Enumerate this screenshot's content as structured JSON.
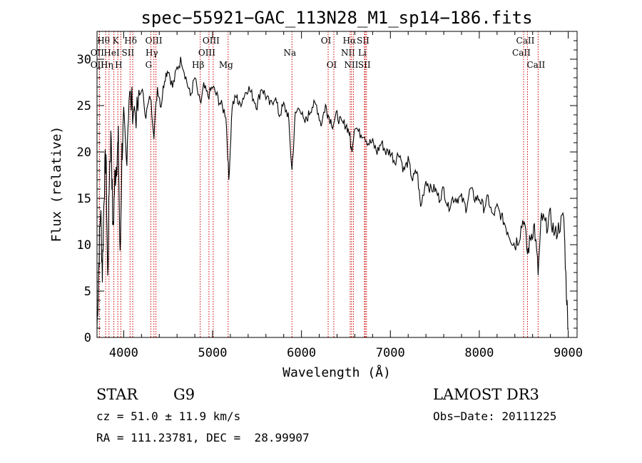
{
  "chart_data": {
    "type": "line",
    "title": "spec−55921−GAC_113N28_M1_sp14−186.fits",
    "xlabel": "Wavelength (Å)",
    "ylabel": "Flux (relative)",
    "xlim": [
      3700,
      9100
    ],
    "ylim": [
      0,
      33
    ],
    "xticks": [
      4000,
      5000,
      6000,
      7000,
      8000,
      9000
    ],
    "yticks": [
      0,
      5,
      10,
      15,
      20,
      25,
      30
    ],
    "series": [
      {
        "name": "flux",
        "x": [
          3700,
          3720,
          3740,
          3760,
          3780,
          3800,
          3820,
          3840,
          3860,
          3880,
          3900,
          3920,
          3940,
          3960,
          3980,
          4000,
          4030,
          4060,
          4100,
          4150,
          4200,
          4250,
          4300,
          4340,
          4380,
          4420,
          4460,
          4500,
          4550,
          4600,
          4650,
          4700,
          4750,
          4800,
          4861,
          4900,
          4950,
          5000,
          5050,
          5100,
          5150,
          5183,
          5220,
          5270,
          5300,
          5350,
          5400,
          5450,
          5500,
          5550,
          5600,
          5650,
          5700,
          5750,
          5800,
          5850,
          5893,
          5930,
          5980,
          6030,
          6080,
          6120,
          6170,
          6220,
          6270,
          6300,
          6350,
          6400,
          6450,
          6500,
          6540,
          6563,
          6600,
          6650,
          6700,
          6750,
          6800,
          6850,
          6900,
          6950,
          7000,
          7050,
          7100,
          7150,
          7200,
          7250,
          7300,
          7340,
          7400,
          7450,
          7500,
          7550,
          7600,
          7650,
          7700,
          7750,
          7800,
          7850,
          7900,
          7950,
          8000,
          8050,
          8100,
          8150,
          8200,
          8250,
          8300,
          8350,
          8400,
          8450,
          8498,
          8542,
          8580,
          8620,
          8662,
          8700,
          8750,
          8800,
          8850,
          8900,
          8950,
          8980,
          9000
        ],
        "values": [
          1,
          8,
          14,
          7,
          16,
          20,
          6,
          18,
          22,
          11,
          17,
          19,
          21,
          8,
          20,
          23,
          19,
          26,
          25,
          24,
          27,
          24,
          26,
          22,
          27,
          25,
          28,
          29,
          27,
          29,
          30,
          28,
          26,
          28,
          25,
          27,
          26,
          27,
          26,
          25,
          24,
          17,
          25,
          26,
          25,
          26,
          27,
          26,
          25,
          27,
          26,
          25,
          26,
          24,
          25,
          24,
          18,
          24,
          25,
          23,
          24,
          25,
          25,
          23,
          25,
          24,
          23,
          24,
          23,
          23,
          22,
          20,
          23,
          22,
          22,
          21,
          21,
          20,
          21,
          20,
          20,
          19,
          20,
          18,
          19,
          17,
          18,
          14,
          17,
          16,
          16,
          15,
          16,
          14,
          15,
          15,
          15,
          14,
          16,
          15,
          15,
          14,
          15,
          13,
          14,
          13,
          12,
          11,
          10,
          11,
          13,
          9,
          11,
          12,
          7,
          13,
          12,
          13,
          11,
          12,
          13,
          5,
          1
        ]
      }
    ],
    "line_marks": [
      {
        "label": "Hθ",
        "wave": 3797,
        "row": 0
      },
      {
        "label": "OII",
        "wave": 3727,
        "row": 1
      },
      {
        "label": "OII",
        "wave": 3727,
        "row": 2
      },
      {
        "label": "K",
        "wave": 3934,
        "row": 0
      },
      {
        "label": "HeI",
        "wave": 3889,
        "row": 1
      },
      {
        "label": "Hη",
        "wave": 3835,
        "row": 2
      },
      {
        "label": "H",
        "wave": 3968,
        "row": 2
      },
      {
        "label": "Hδ",
        "wave": 4102,
        "row": 0
      },
      {
        "label": "SII",
        "wave": 4072,
        "row": 1
      },
      {
        "label": "OIII",
        "wave": 4363,
        "row": 0
      },
      {
        "label": "Hγ",
        "wave": 4340,
        "row": 1
      },
      {
        "label": "G",
        "wave": 4305,
        "row": 2
      },
      {
        "label": "Hβ",
        "wave": 4861,
        "row": 2
      },
      {
        "label": "OIII",
        "wave": 5007,
        "row": 0
      },
      {
        "label": "OIII",
        "wave": 4959,
        "row": 1
      },
      {
        "label": "Mg",
        "wave": 5175,
        "row": 2
      },
      {
        "label": "Na",
        "wave": 5893,
        "row": 1
      },
      {
        "label": "OI",
        "wave": 6300,
        "row": 0
      },
      {
        "label": "OI",
        "wave": 6364,
        "row": 2
      },
      {
        "label": "Hα",
        "wave": 6563,
        "row": 0
      },
      {
        "label": "NII",
        "wave": 6548,
        "row": 1
      },
      {
        "label": "NII",
        "wave": 6584,
        "row": 2
      },
      {
        "label": "SII",
        "wave": 6717,
        "row": 0
      },
      {
        "label": "Li",
        "wave": 6708,
        "row": 1
      },
      {
        "label": "SII",
        "wave": 6731,
        "row": 2
      },
      {
        "label": "CaII",
        "wave": 8542,
        "row": 0
      },
      {
        "label": "CaII",
        "wave": 8498,
        "row": 1
      },
      {
        "label": "CaII",
        "wave": 8662,
        "row": 2
      }
    ]
  },
  "info": {
    "class": "STAR",
    "subclass": "G9",
    "survey": "LAMOST DR3",
    "cz": "cz = 51.0 ± 11.9 km/s",
    "obs_date": "Obs−Date: 20111225",
    "radec": "RA = 111.23781, DEC =  28.99907"
  },
  "colors": {
    "line_marker": "#cc0000",
    "spectrum": "#000000"
  }
}
